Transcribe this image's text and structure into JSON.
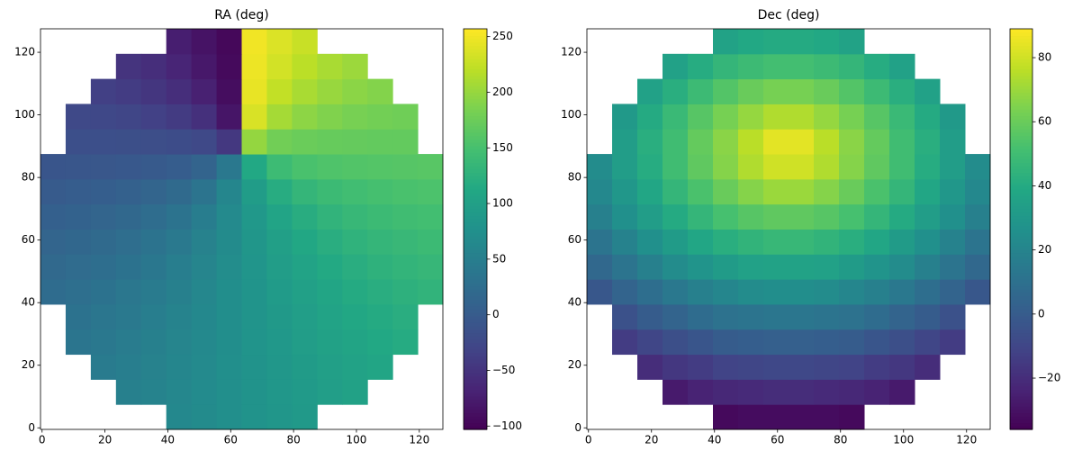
{
  "chart_data": [
    {
      "type": "heatmap",
      "title": "RA (deg)",
      "colormap": "viridis",
      "origin": "lower",
      "xlim": [
        -0.5,
        127.5
      ],
      "ylim": [
        -0.5,
        127.5
      ],
      "xticks": [
        0,
        20,
        40,
        60,
        80,
        100,
        120
      ],
      "yticks": [
        0,
        20,
        40,
        60,
        80,
        100,
        120
      ],
      "clim": [
        -103,
        257
      ],
      "cticks": [
        {
          "value": -100,
          "label": "−100"
        },
        {
          "value": -50,
          "label": "−50"
        },
        0,
        50,
        100,
        150,
        200,
        250
      ],
      "z": [
        [
          null,
          null,
          null,
          null,
          null,
          64,
          69,
          74,
          80,
          85,
          90,
          null,
          null,
          null,
          null,
          null
        ],
        [
          null,
          null,
          null,
          52,
          57,
          62,
          68,
          74,
          80,
          86,
          91,
          97,
          102,
          null,
          null,
          null
        ],
        [
          null,
          null,
          45,
          50,
          55,
          61,
          67,
          74,
          80,
          87,
          93,
          99,
          104,
          109,
          null,
          null
        ],
        [
          null,
          37,
          41,
          47,
          53,
          59,
          66,
          73,
          81,
          88,
          95,
          102,
          107,
          113,
          117,
          null
        ],
        [
          null,
          33,
          38,
          43,
          49,
          57,
          64,
          73,
          81,
          90,
          97,
          105,
          111,
          116,
          121,
          null
        ],
        [
          24,
          28,
          33,
          39,
          45,
          53,
          62,
          72,
          82,
          92,
          101,
          109,
          116,
          121,
          126,
          130
        ],
        [
          19,
          23,
          27,
          33,
          40,
          49,
          59,
          71,
          83,
          95,
          105,
          114,
          121,
          127,
          131,
          135
        ],
        [
          13,
          17,
          21,
          26,
          34,
          43,
          55,
          69,
          85,
          99,
          111,
          121,
          128,
          133,
          137,
          141
        ],
        [
          7,
          10,
          13,
          18,
          25,
          34,
          48,
          67,
          88,
          106,
          120,
          130,
          136,
          141,
          145,
          147
        ],
        [
          0,
          2,
          4,
          8,
          13,
          21,
          35,
          61,
          94,
          119,
          133,
          141,
          146,
          150,
          152,
          154
        ],
        [
          -8,
          -7,
          -6,
          -4,
          -2,
          2,
          12,
          41,
          113,
          142,
          152,
          156,
          158,
          160,
          161,
          162
        ],
        [
          null,
          -16,
          -16,
          -17,
          -18,
          -20,
          -25,
          -45,
          199,
          179,
          174,
          172,
          171,
          170,
          170,
          null
        ],
        [
          null,
          -24,
          -26,
          -29,
          -34,
          -41,
          -54,
          -82,
          236,
          208,
          195,
          188,
          183,
          180,
          178,
          null
        ],
        [
          null,
          null,
          -36,
          -40,
          -47,
          -56,
          -70,
          -91,
          245,
          224,
          210,
          201,
          194,
          190,
          null,
          null
        ],
        [
          null,
          null,
          null,
          -49,
          -56,
          -66,
          -79,
          -94,
          248,
          233,
          220,
          210,
          203,
          null,
          null,
          null
        ],
        [
          null,
          null,
          null,
          null,
          null,
          -73,
          -84,
          -96,
          250,
          238,
          227,
          null,
          null,
          null,
          null,
          null
        ]
      ]
    },
    {
      "type": "heatmap",
      "title": "Dec (deg)",
      "colormap": "viridis",
      "origin": "lower",
      "xlim": [
        -0.5,
        127.5
      ],
      "ylim": [
        -0.5,
        127.5
      ],
      "xticks": [
        0,
        20,
        40,
        60,
        80,
        100,
        120
      ],
      "yticks": [
        0,
        20,
        40,
        60,
        80,
        100,
        120
      ],
      "clim": [
        -36,
        89
      ],
      "cticks": [
        {
          "value": -20,
          "label": "−20"
        },
        0,
        20,
        40,
        60,
        80
      ],
      "z": [
        [
          null,
          null,
          null,
          null,
          null,
          -33,
          -32,
          -32,
          -32,
          -32,
          -33,
          null,
          null,
          null,
          null,
          null
        ],
        [
          null,
          null,
          null,
          -27,
          -24,
          -22,
          -21,
          -20,
          -20,
          -21,
          -22,
          -24,
          -27,
          null,
          null,
          null
        ],
        [
          null,
          null,
          -20,
          -16,
          -14,
          -11,
          -10,
          -9,
          -9,
          -10,
          -11,
          -14,
          -16,
          -20,
          null,
          null
        ],
        [
          null,
          -14,
          -10,
          -6,
          -3,
          0,
          1,
          2,
          2,
          1,
          0,
          -3,
          -6,
          -10,
          -14,
          null
        ],
        [
          null,
          -5,
          0,
          4,
          8,
          11,
          12,
          13,
          13,
          12,
          11,
          8,
          4,
          0,
          -5,
          null
        ],
        [
          -2,
          4,
          9,
          14,
          18,
          21,
          24,
          25,
          25,
          24,
          21,
          18,
          14,
          9,
          4,
          -2
        ],
        [
          6,
          12,
          18,
          24,
          28,
          32,
          35,
          36,
          36,
          35,
          32,
          28,
          24,
          18,
          12,
          6
        ],
        [
          12,
          19,
          26,
          32,
          38,
          42,
          45,
          47,
          47,
          45,
          42,
          38,
          32,
          26,
          19,
          12
        ],
        [
          18,
          26,
          33,
          40,
          46,
          52,
          56,
          58,
          58,
          56,
          52,
          46,
          40,
          33,
          26,
          18
        ],
        [
          22,
          30,
          38,
          46,
          53,
          60,
          66,
          70,
          70,
          66,
          60,
          53,
          46,
          38,
          30,
          22
        ],
        [
          24,
          33,
          41,
          50,
          58,
          66,
          74,
          80,
          80,
          74,
          66,
          58,
          50,
          41,
          33,
          24
        ],
        [
          null,
          33,
          42,
          50,
          59,
          67,
          76,
          84,
          84,
          76,
          67,
          59,
          50,
          42,
          33,
          null
        ],
        [
          null,
          31,
          40,
          48,
          56,
          63,
          69,
          74,
          74,
          69,
          63,
          56,
          48,
          40,
          31,
          null
        ],
        [
          null,
          null,
          35,
          42,
          49,
          55,
          60,
          63,
          63,
          60,
          55,
          49,
          42,
          35,
          null,
          null
        ],
        [
          null,
          null,
          null,
          35,
          41,
          46,
          49,
          51,
          51,
          49,
          46,
          41,
          35,
          null,
          null,
          null
        ],
        [
          null,
          null,
          null,
          null,
          null,
          36,
          39,
          40,
          40,
          39,
          36,
          null,
          null,
          null,
          null,
          null
        ]
      ]
    }
  ]
}
